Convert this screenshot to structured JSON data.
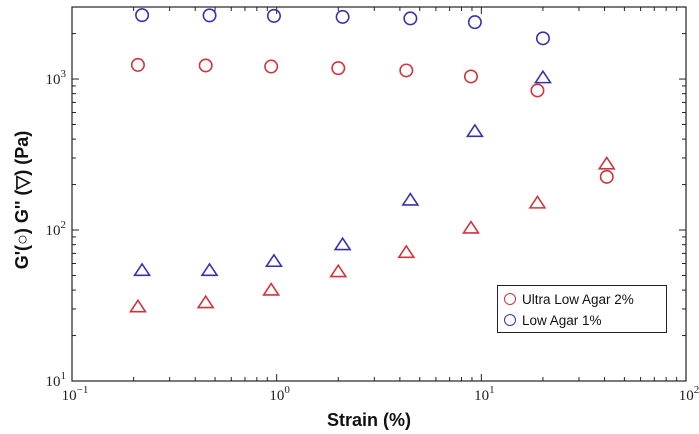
{
  "chart_data": {
    "type": "scatter",
    "xscale": "log",
    "yscale": "log",
    "xlim": [
      0.1,
      100
    ],
    "ylim": [
      10,
      3000
    ],
    "xlabel": "Strain (%)",
    "ylabel": "G'(○) G'' (▽) (Pa)",
    "x_ticks": [
      {
        "value": 0.1,
        "base": "10",
        "exp": "−1"
      },
      {
        "value": 1,
        "base": "10",
        "exp": "0"
      },
      {
        "value": 10,
        "base": "10",
        "exp": "1"
      },
      {
        "value": 100,
        "base": "10",
        "exp": "2"
      }
    ],
    "y_ticks": [
      {
        "value": 10,
        "base": "10",
        "exp": "1"
      },
      {
        "value": 100,
        "base": "10",
        "exp": "2"
      },
      {
        "value": 1000,
        "base": "10",
        "exp": "3"
      }
    ],
    "legend_position": "bottom-right",
    "legend": [
      {
        "label": "Ultra Low Agar 2%",
        "color": "#d0343a"
      },
      {
        "label": "Low Agar 1%",
        "color": "#3333b0"
      }
    ],
    "series": [
      {
        "name": "Ultra Low Agar 2%",
        "modulus": "G'",
        "marker": "circle",
        "color": "#d0343a",
        "x": [
          0.21,
          0.45,
          0.94,
          2.0,
          4.3,
          8.9,
          18.8,
          41.0
        ],
        "y": [
          1240,
          1230,
          1210,
          1180,
          1140,
          1040,
          840,
          225
        ]
      },
      {
        "name": "Ultra Low Agar 2%",
        "modulus": "G''",
        "marker": "triangle",
        "color": "#d0343a",
        "x": [
          0.21,
          0.45,
          0.94,
          2.0,
          4.3,
          8.9,
          18.8,
          41.0
        ],
        "y": [
          31,
          33,
          40,
          53,
          71,
          103,
          151,
          274
        ]
      },
      {
        "name": "Low Agar 1%",
        "modulus": "G'",
        "marker": "circle",
        "color": "#3333b0",
        "x": [
          0.22,
          0.47,
          0.97,
          2.1,
          4.5,
          9.3,
          20.0
        ],
        "y": [
          2650,
          2640,
          2620,
          2580,
          2520,
          2380,
          1860
        ]
      },
      {
        "name": "Low Agar 1%",
        "modulus": "G''",
        "marker": "triangle",
        "color": "#3333b0",
        "x": [
          0.22,
          0.47,
          0.97,
          2.1,
          4.5,
          9.3,
          20.0
        ],
        "y": [
          54,
          54,
          62,
          80,
          158,
          450,
          1020
        ]
      }
    ]
  }
}
